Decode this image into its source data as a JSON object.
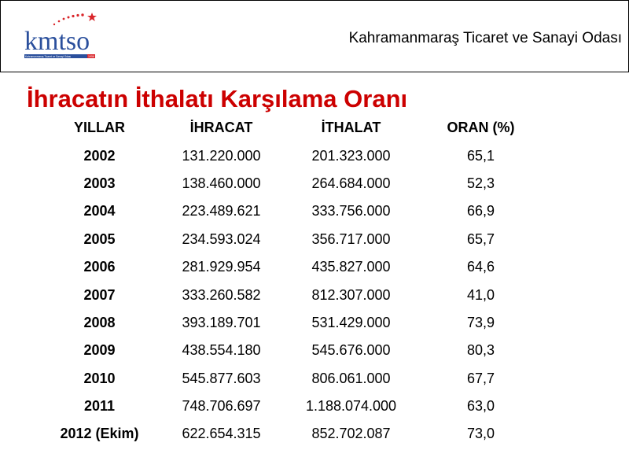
{
  "header": {
    "org_name": "Kahramanmaraş Ticaret ve Sanayi Odası",
    "logo": {
      "text": "kmtso",
      "tagline": "Kahramanmaraş Ticaret ve Sanayi Odası",
      "year": "1958"
    }
  },
  "title": "İhracatın İthalatı Karşılama Oranı",
  "table": {
    "columns": [
      "YILLAR",
      "İHRACAT",
      "İTHALAT",
      "ORAN (%)"
    ],
    "rows": [
      [
        "2002",
        "131.220.000",
        "201.323.000",
        "65,1"
      ],
      [
        "2003",
        "138.460.000",
        "264.684.000",
        "52,3"
      ],
      [
        "2004",
        "223.489.621",
        "333.756.000",
        "66,9"
      ],
      [
        "2005",
        "234.593.024",
        "356.717.000",
        "65,7"
      ],
      [
        "2006",
        "281.929.954",
        "435.827.000",
        "64,6"
      ],
      [
        "2007",
        "333.260.582",
        "812.307.000",
        "41,0"
      ],
      [
        "2008",
        "393.189.701",
        "531.429.000",
        "73,9"
      ],
      [
        "2009",
        "438.554.180",
        "545.676.000",
        "80,3"
      ],
      [
        "2010",
        "545.877.603",
        "806.061.000",
        "67,7"
      ],
      [
        "2011",
        "748.706.697",
        "1.188.074.000",
        "63,0"
      ],
      [
        "2012 (Ekim)",
        "622.654.315",
        "852.702.087",
        "73,0"
      ]
    ]
  },
  "colors": {
    "title": "#cc0000",
    "logo_blue": "#2a4f9c",
    "logo_red": "#d9252a"
  }
}
